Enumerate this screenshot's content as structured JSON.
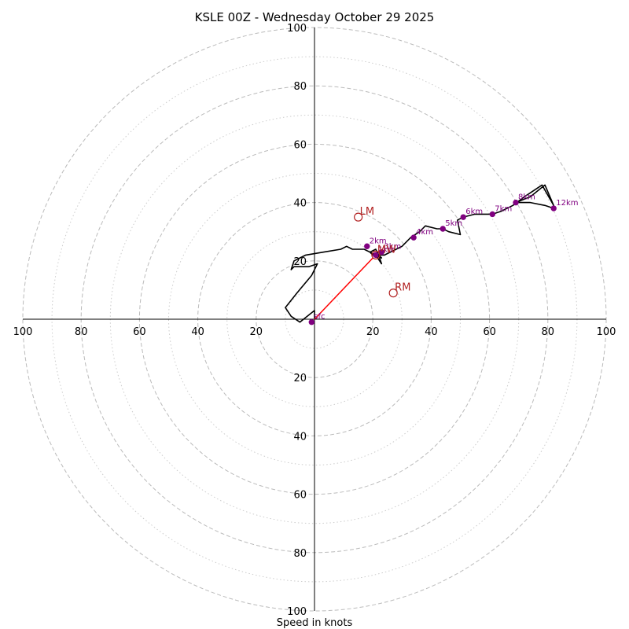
{
  "chart_data": {
    "type": "hodograph",
    "title": "KSLE 00Z - Wednesday October 29 2025",
    "xlabel": "Speed in knots",
    "range": [
      -100,
      100
    ],
    "ring_major": [
      20,
      40,
      60,
      80,
      100
    ],
    "ring_minor": [
      10,
      30,
      50,
      70,
      90
    ],
    "tick_labels": [
      "20",
      "40",
      "60",
      "80",
      "100"
    ],
    "colors": {
      "trace": "#000000",
      "heights": "#800080",
      "motion": "#b22222",
      "shear_vector": "#ff0000",
      "grid": "#bbbbbb"
    },
    "wind_trace": [
      [
        0,
        0
      ],
      [
        0,
        3
      ],
      [
        -5,
        -1
      ],
      [
        -8,
        1
      ],
      [
        -10,
        4
      ],
      [
        -6,
        9
      ],
      [
        -1,
        15
      ],
      [
        1,
        19
      ],
      [
        -2,
        18
      ],
      [
        -7,
        18
      ],
      [
        -8,
        17
      ],
      [
        -7,
        20
      ],
      [
        -3,
        22
      ],
      [
        3,
        23
      ],
      [
        9,
        24
      ],
      [
        11,
        25
      ],
      [
        13,
        24
      ],
      [
        17,
        24
      ],
      [
        19,
        23
      ],
      [
        23,
        21
      ],
      [
        22,
        22
      ],
      [
        23,
        19
      ],
      [
        21,
        22
      ],
      [
        20,
        22
      ],
      [
        19,
        23
      ],
      [
        21,
        24
      ],
      [
        22,
        22
      ],
      [
        24,
        22
      ],
      [
        30,
        25
      ],
      [
        33,
        28
      ],
      [
        36,
        30
      ],
      [
        38,
        32
      ],
      [
        42,
        31
      ],
      [
        44,
        31
      ],
      [
        46,
        30
      ],
      [
        50,
        29
      ],
      [
        49,
        34
      ],
      [
        51,
        35
      ],
      [
        55,
        36
      ],
      [
        61,
        36
      ],
      [
        64,
        37
      ],
      [
        68,
        39
      ],
      [
        72,
        42
      ],
      [
        78,
        46
      ],
      [
        82,
        39
      ],
      [
        79,
        46
      ],
      [
        74,
        42
      ],
      [
        69,
        40
      ],
      [
        74,
        40
      ],
      [
        79,
        39
      ],
      [
        82,
        38
      ]
    ],
    "height_markers": [
      {
        "label": "sfc",
        "u": -1,
        "v": -1
      },
      {
        "label": "2km",
        "u": 18,
        "v": 25
      },
      {
        "label": "1km",
        "u": 21,
        "v": 22
      },
      {
        "label": "3km",
        "u": 23,
        "v": 23
      },
      {
        "label": "4km",
        "u": 34,
        "v": 28
      },
      {
        "label": "5km",
        "u": 44,
        "v": 31
      },
      {
        "label": "6km",
        "u": 51,
        "v": 35
      },
      {
        "label": "7km",
        "u": 61,
        "v": 36
      },
      {
        "label": "8km",
        "u": 69,
        "v": 40
      },
      {
        "label": "12km",
        "u": 82,
        "v": 38
      }
    ],
    "storm_motions": [
      {
        "label": "LM",
        "u": 15,
        "v": 35
      },
      {
        "label": "RM",
        "u": 27,
        "v": 9
      },
      {
        "label": "MW",
        "u": 21,
        "v": 22
      }
    ],
    "shear_vector": {
      "from": [
        0,
        0
      ],
      "to": [
        20,
        21
      ]
    }
  }
}
